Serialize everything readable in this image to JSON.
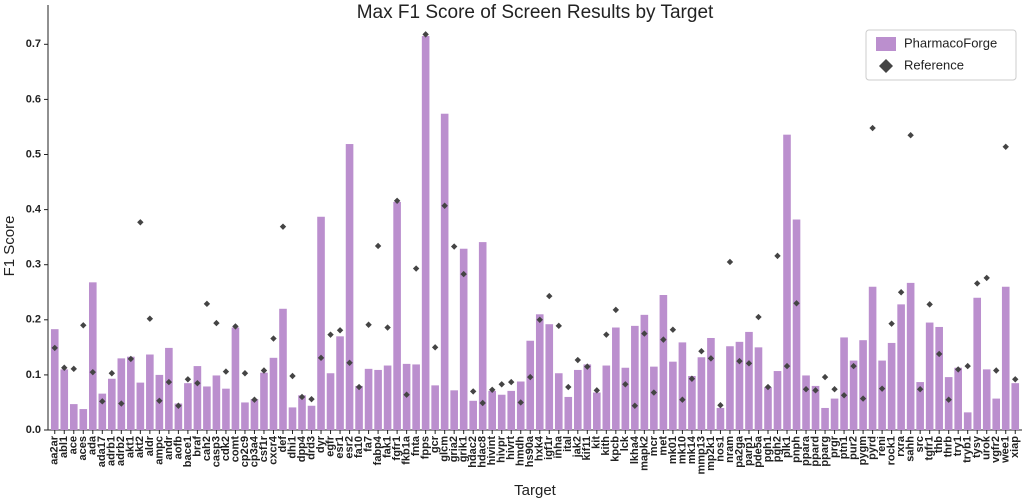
{
  "chart_data": {
    "type": "bar",
    "title": "Max F1 Score of Screen Results by Target",
    "x_label": "Target",
    "y_label": "F1 Score",
    "categories": [
      "aa2ar",
      "abl1",
      "ace",
      "aces",
      "ada",
      "ada17",
      "adrb1",
      "adrb2",
      "akt1",
      "akt2",
      "aldr",
      "ampc",
      "andr",
      "aofb",
      "bace1",
      "braf",
      "cah2",
      "casp3",
      "cdk2",
      "comt",
      "cp2c9",
      "cp3a4",
      "csf1r",
      "cxcr4",
      "def",
      "dhi1",
      "dpp4",
      "drd3",
      "dyr",
      "egfr",
      "esr1",
      "esr2",
      "fa10",
      "fa7",
      "fabp4",
      "fak1",
      "fgfr1",
      "fkb1a",
      "fnta",
      "fpps",
      "gcr",
      "glcm",
      "gria2",
      "grik1",
      "hdac2",
      "hdac8",
      "hivint",
      "hivpr",
      "hivrt",
      "hmdh",
      "hs90a",
      "hxk4",
      "igf1r",
      "inha",
      "ital",
      "jak2",
      "kif11",
      "kit",
      "kith",
      "kpcb",
      "lck",
      "lkha4",
      "mapk2",
      "mcr",
      "met",
      "mk01",
      "mk10",
      "mk14",
      "mmp13",
      "mp2k1",
      "nos1",
      "nram",
      "pa2ga",
      "parp1",
      "pde5a",
      "pgh1",
      "pgh2",
      "plk1",
      "pnph",
      "ppara",
      "ppard",
      "pparg",
      "prgr",
      "ptn1",
      "pur2",
      "pygm",
      "pyrd",
      "reni",
      "rock1",
      "rxra",
      "sahh",
      "src",
      "tgfr1",
      "thb",
      "thrb",
      "try1",
      "tryb1",
      "tysy",
      "urok",
      "vgfr2",
      "wee1",
      "xiap"
    ],
    "series": [
      {
        "name": "PharmacoForge",
        "color": "#bb8fce",
        "marker": "bar",
        "values": [
          0.183,
          0.11,
          0.047,
          0.038,
          0.268,
          0.066,
          0.093,
          0.13,
          0.133,
          0.086,
          0.137,
          0.1,
          0.149,
          0.048,
          0.085,
          0.116,
          0.079,
          0.099,
          0.075,
          0.186,
          0.05,
          0.056,
          0.104,
          0.131,
          0.22,
          0.041,
          0.063,
          0.044,
          0.387,
          0.103,
          0.17,
          0.519,
          0.08,
          0.111,
          0.109,
          0.117,
          0.414,
          0.12,
          0.119,
          0.715,
          0.081,
          0.574,
          0.072,
          0.329,
          0.053,
          0.341,
          0.071,
          0.064,
          0.071,
          0.088,
          0.162,
          0.21,
          0.192,
          0.103,
          0.06,
          0.109,
          0.119,
          0.068,
          0.117,
          0.186,
          0.113,
          0.189,
          0.209,
          0.115,
          0.245,
          0.124,
          0.159,
          0.098,
          0.132,
          0.167,
          0.04,
          0.152,
          0.16,
          0.178,
          0.15,
          0.078,
          0.107,
          0.536,
          0.382,
          0.099,
          0.08,
          0.04,
          0.057,
          0.168,
          0.126,
          0.163,
          0.26,
          0.126,
          0.158,
          0.228,
          0.267,
          0.087,
          0.195,
          0.187,
          0.096,
          0.113,
          0.032,
          0.24,
          0.11,
          0.057,
          0.26,
          0.085
        ]
      },
      {
        "name": "Reference",
        "color": "#444444",
        "marker": "diamond",
        "values": [
          0.149,
          0.113,
          0.111,
          0.19,
          0.105,
          0.052,
          0.103,
          0.048,
          0.129,
          0.377,
          0.202,
          0.053,
          0.087,
          0.044,
          0.092,
          0.085,
          0.229,
          0.194,
          0.106,
          0.188,
          0.103,
          0.055,
          0.108,
          0.166,
          0.369,
          0.098,
          0.06,
          0.056,
          0.131,
          0.173,
          0.181,
          0.122,
          0.078,
          0.191,
          0.334,
          0.186,
          0.416,
          0.064,
          0.293,
          0.718,
          0.15,
          0.407,
          0.333,
          0.283,
          0.07,
          0.049,
          0.073,
          0.083,
          0.087,
          0.05,
          0.096,
          0.2,
          0.243,
          0.189,
          0.078,
          0.127,
          0.115,
          0.072,
          0.173,
          0.218,
          0.083,
          0.044,
          0.175,
          0.068,
          0.164,
          0.182,
          0.055,
          0.093,
          0.143,
          0.13,
          0.045,
          0.305,
          0.125,
          0.121,
          0.205,
          0.078,
          0.316,
          0.116,
          0.23,
          0.074,
          0.072,
          0.096,
          0.074,
          0.063,
          0.116,
          0.057,
          0.548,
          0.075,
          0.193,
          0.25,
          0.535,
          0.074,
          0.228,
          0.138,
          0.055,
          0.11,
          0.116,
          0.266,
          0.276,
          0.108,
          0.514,
          0.092
        ]
      }
    ],
    "ylim": [
      0,
      0.755
    ],
    "yticks": [
      {
        "value": 0,
        "label": "0.0"
      },
      {
        "value": 0.1,
        "label": "0.1"
      },
      {
        "value": 0.2,
        "label": "0.2"
      },
      {
        "value": 0.3,
        "label": "0.3"
      },
      {
        "value": 0.4,
        "label": "0.4"
      },
      {
        "value": 0.5,
        "label": "0.5"
      },
      {
        "value": 0.6,
        "label": "0.6"
      },
      {
        "value": 0.7,
        "label": "0.7"
      }
    ],
    "legend": "upper right",
    "grid": false
  }
}
